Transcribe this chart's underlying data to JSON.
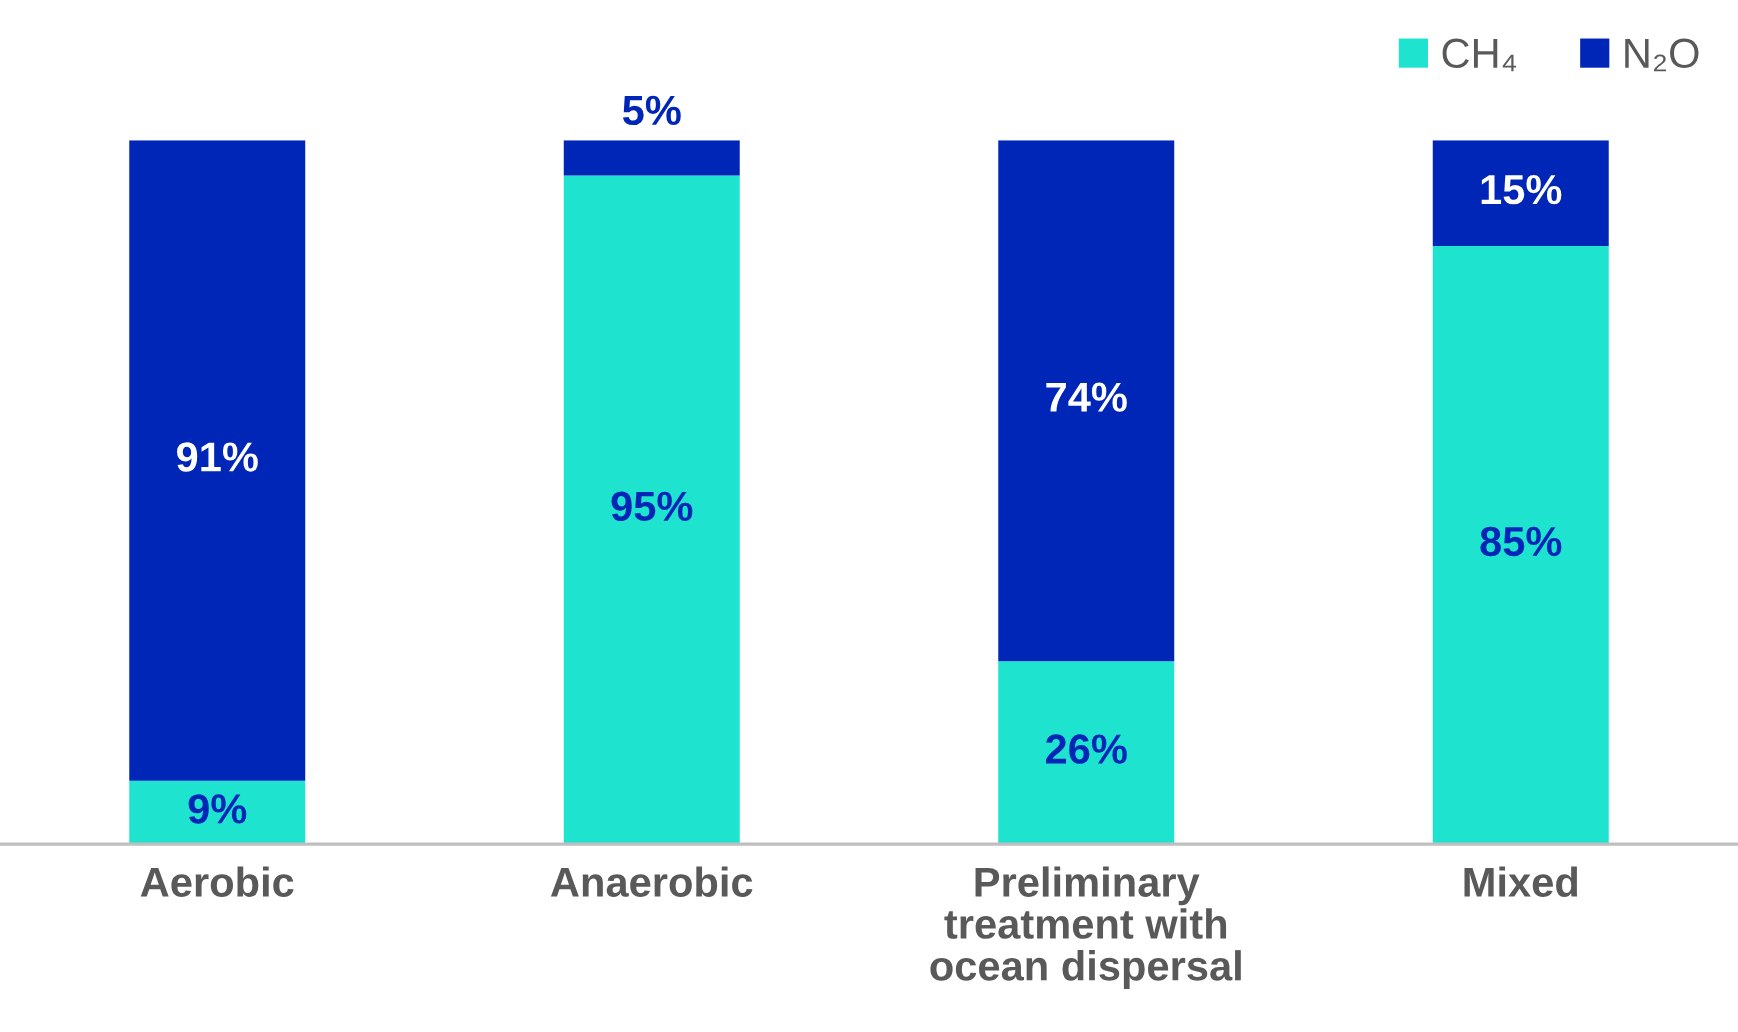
{
  "chart_data": {
    "type": "bar",
    "stacked": true,
    "categories": [
      "Aerobic",
      "Anaerobic",
      "Preliminary\ntreatment with\nocean dispersal",
      "Mixed"
    ],
    "series": [
      {
        "name": "CH₄",
        "color": "#1de3cf",
        "values": [
          9,
          95,
          26,
          85
        ],
        "value_labels": [
          "9%",
          "95%",
          "26%",
          "85%"
        ]
      },
      {
        "name": "N₂O",
        "color": "#0026b8",
        "values": [
          91,
          5,
          74,
          15
        ],
        "value_labels": [
          "91%",
          "5%",
          "74%",
          "15%"
        ]
      }
    ],
    "legend": "top right"
  }
}
